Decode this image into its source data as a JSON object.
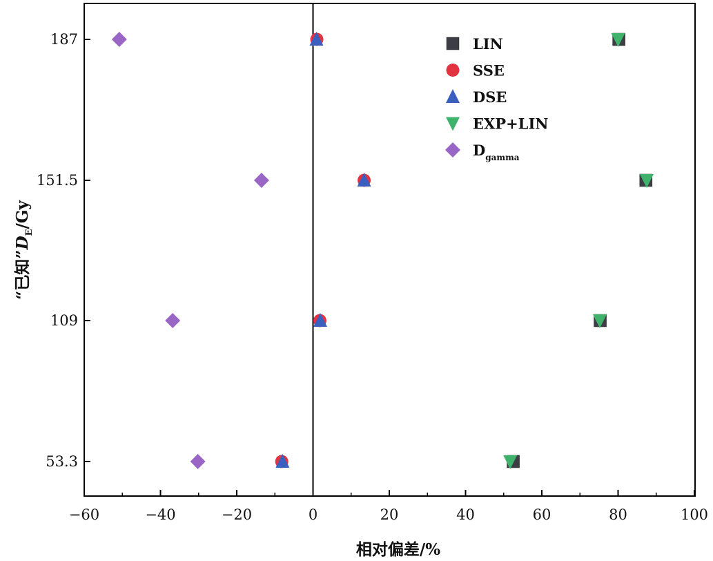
{
  "chart_data": {
    "type": "scatter",
    "xlabel": "相对偏差/%",
    "ylabel_parts": [
      "“已知”",
      "D",
      "E",
      "/Gy"
    ],
    "xlim": [
      -60,
      100
    ],
    "x_ticks": [
      "−60",
      "−40",
      "−20",
      "0",
      "20",
      "40",
      "60",
      "80",
      "100"
    ],
    "x_tick_values": [
      -60,
      -40,
      -20,
      0,
      20,
      40,
      60,
      80,
      100
    ],
    "y_categories": [
      "53.3",
      "109",
      "151.5",
      "187"
    ],
    "reference_line_x": 0,
    "legend_position": "top-right",
    "grid": false,
    "series": [
      {
        "name": "LIN",
        "marker": "square",
        "color": "#3d3d45",
        "points": [
          {
            "x": 52.5,
            "y": "53.3"
          },
          {
            "x": 75.3,
            "y": "109"
          },
          {
            "x": 87.3,
            "y": "151.5"
          },
          {
            "x": 80.2,
            "y": "187"
          }
        ]
      },
      {
        "name": "SSE",
        "marker": "circle",
        "color": "#e23440",
        "points": [
          {
            "x": -8.2,
            "y": "53.3"
          },
          {
            "x": 1.8,
            "y": "109"
          },
          {
            "x": 13.4,
            "y": "151.5"
          },
          {
            "x": 1.0,
            "y": "187"
          }
        ]
      },
      {
        "name": "DSE",
        "marker": "triangle-up",
        "color": "#3b5fbf",
        "points": [
          {
            "x": -8.0,
            "y": "53.3"
          },
          {
            "x": 1.9,
            "y": "109"
          },
          {
            "x": 13.4,
            "y": "151.5"
          },
          {
            "x": 0.9,
            "y": "187"
          }
        ]
      },
      {
        "name": "EXP+LIN",
        "marker": "triangle-down",
        "color": "#3fb36b",
        "points": [
          {
            "x": 51.7,
            "y": "53.3"
          },
          {
            "x": 75.2,
            "y": "109"
          },
          {
            "x": 87.5,
            "y": "151.5"
          },
          {
            "x": 80.0,
            "y": "187"
          }
        ]
      },
      {
        "name_main": "D",
        "name_sub": "gamma",
        "marker": "diamond",
        "color": "#9a66c6",
        "points": [
          {
            "x": -30.2,
            "y": "53.3"
          },
          {
            "x": -36.8,
            "y": "109"
          },
          {
            "x": -13.5,
            "y": "151.5"
          },
          {
            "x": -50.8,
            "y": "187"
          }
        ]
      }
    ]
  }
}
